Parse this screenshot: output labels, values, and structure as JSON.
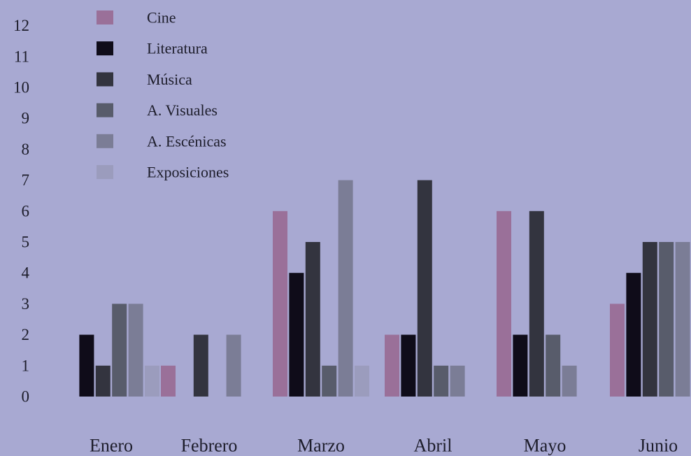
{
  "chart_data": {
    "type": "bar",
    "title": "",
    "xlabel": "",
    "ylabel": "",
    "ylim": [
      0,
      12
    ],
    "yticks": [
      0,
      1,
      2,
      3,
      4,
      5,
      6,
      7,
      8,
      9,
      10,
      11,
      12
    ],
    "categories": [
      "Enero",
      "Febrero",
      "Marzo",
      "Abril",
      "Mayo",
      "Junio"
    ],
    "grid": false,
    "legend_position": "top-left",
    "series": [
      {
        "name": "Cine",
        "color": "#9a7099",
        "values": [
          0,
          1,
          6,
          2,
          6,
          3
        ]
      },
      {
        "name": "Literatura",
        "color": "#0f0c19",
        "values": [
          2,
          0,
          4,
          2,
          2,
          4
        ]
      },
      {
        "name": "Música",
        "color": "#33343f",
        "values": [
          1,
          2,
          5,
          7,
          6,
          5
        ]
      },
      {
        "name": "A. Visuales",
        "color": "#585c6b",
        "values": [
          3,
          0,
          1,
          1,
          2,
          5
        ]
      },
      {
        "name": "A. Escénicas",
        "color": "#7b7d96",
        "values": [
          3,
          2,
          7,
          1,
          1,
          5
        ]
      },
      {
        "name": "Exposiciones",
        "color": "#9b9cbd",
        "values": [
          1,
          0,
          1,
          0,
          0,
          0
        ]
      }
    ]
  }
}
